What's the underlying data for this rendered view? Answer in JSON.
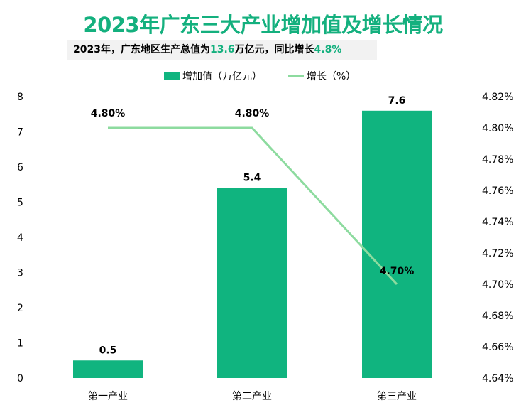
{
  "title": "2023年广东三大产业增加值及增长情况",
  "subtitle": {
    "prefix": "2023年，广东地区生产总值为",
    "value1": "13.6",
    "middle": "万亿元，同比增长",
    "value2": "4.8%"
  },
  "colors": {
    "bar": "#10b47f",
    "line": "#8ddb9f",
    "title": "#14b07e"
  },
  "chart_data": {
    "type": "bar+line",
    "categories": [
      "第一产业",
      "第二产业",
      "第三产业"
    ],
    "series": [
      {
        "name": "增加值（万亿元）",
        "type": "bar",
        "axis": "left",
        "values": [
          0.5,
          5.4,
          7.6
        ],
        "labels": [
          "0.5",
          "5.4",
          "7.6"
        ]
      },
      {
        "name": "增长（%）",
        "type": "line",
        "axis": "right",
        "values": [
          4.8,
          4.8,
          4.7
        ],
        "labels": [
          "4.80%",
          "4.80%",
          "4.70%"
        ]
      }
    ],
    "y_left": {
      "range": [
        0,
        8
      ],
      "ticks": [
        "0",
        "1",
        "2",
        "3",
        "4",
        "5",
        "6",
        "7",
        "8"
      ]
    },
    "y_right": {
      "range": [
        4.64,
        4.82
      ],
      "ticks": [
        "4.64%",
        "4.66%",
        "4.68%",
        "4.70%",
        "4.72%",
        "4.74%",
        "4.76%",
        "4.78%",
        "4.80%",
        "4.82%"
      ]
    },
    "legend": "top",
    "grid": false
  }
}
